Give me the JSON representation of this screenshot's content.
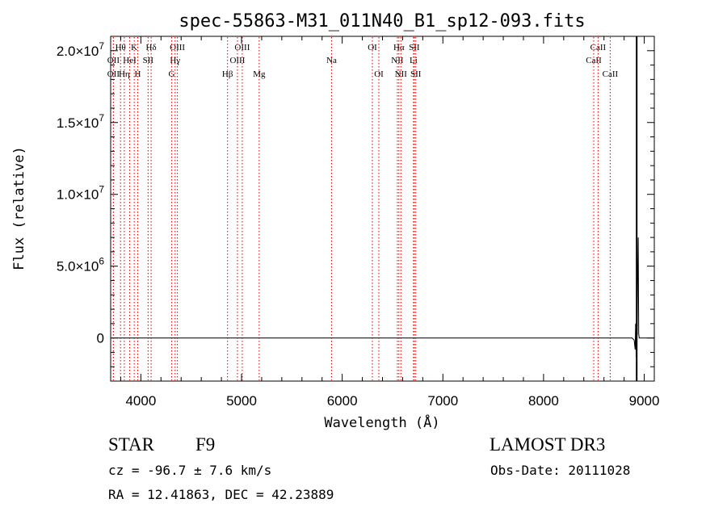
{
  "chart_data": {
    "type": "line",
    "title": "spec-55863-M31_011N40_B1_sp12-093.fits",
    "xlabel": "Wavelength (Å)",
    "ylabel": "Flux (relative)",
    "xlim": [
      3700,
      9100
    ],
    "ylim": [
      -3000000,
      21000000
    ],
    "x_ticks": [
      {
        "value": 4000,
        "label": "4000"
      },
      {
        "value": 5000,
        "label": "5000"
      },
      {
        "value": 6000,
        "label": "6000"
      },
      {
        "value": 7000,
        "label": "7000"
      },
      {
        "value": 8000,
        "label": "8000"
      },
      {
        "value": 9000,
        "label": "9000"
      }
    ],
    "y_ticks": [
      {
        "value": 0,
        "mantissa": "0",
        "exponent": ""
      },
      {
        "value": 5000000,
        "mantissa": "5.0×10",
        "exponent": "6"
      },
      {
        "value": 10000000,
        "mantissa": "1.0×10",
        "exponent": "7"
      },
      {
        "value": 15000000,
        "mantissa": "1.5×10",
        "exponent": "7"
      },
      {
        "value": 20000000,
        "mantissa": "2.0×10",
        "exponent": "7"
      }
    ],
    "series": [
      {
        "name": "flux",
        "x": [
          3700,
          8880,
          8900,
          8910,
          8915,
          8920,
          8925,
          8930,
          8935,
          8940,
          8945,
          8950,
          9100
        ],
        "y": [
          0,
          0,
          -150000,
          -800000,
          1000000,
          -1300000,
          400000,
          200000,
          4500000,
          7000000,
          300000,
          0,
          0
        ]
      }
    ],
    "spike": {
      "x": 8925,
      "y_top": 21000000,
      "y_bottom": -3000000
    },
    "emission_lines": [
      {
        "label": "Hθ",
        "x": 3798,
        "row": 1
      },
      {
        "label": "OII",
        "x": 3727,
        "row": 2
      },
      {
        "label": "OII",
        "x": 3727,
        "row": 3
      },
      {
        "label": "K",
        "x": 3934,
        "row": 1
      },
      {
        "label": "HeI",
        "x": 3889,
        "row": 2
      },
      {
        "label": "Hη",
        "x": 3835,
        "row": 3
      },
      {
        "label": "H",
        "x": 3969,
        "row": 3
      },
      {
        "label": "Hδ",
        "x": 4102,
        "row": 1
      },
      {
        "label": "SII",
        "x": 4072,
        "row": 2
      },
      {
        "label": "OIII",
        "x": 4363,
        "row": 1
      },
      {
        "label": "Hγ",
        "x": 4340,
        "row": 2
      },
      {
        "label": "G",
        "x": 4306,
        "row": 3
      },
      {
        "label": "OIII",
        "x": 5007,
        "row": 1
      },
      {
        "label": "OIII",
        "x": 4959,
        "row": 2
      },
      {
        "label": "Hβ",
        "x": 4861,
        "row": 3
      },
      {
        "label": "Mg",
        "x": 5175,
        "row": 3
      },
      {
        "label": "Na",
        "x": 5894,
        "row": 2
      },
      {
        "label": "OI",
        "x": 6300,
        "row": 1
      },
      {
        "label": "OI",
        "x": 6364,
        "row": 3
      },
      {
        "label": "Hα",
        "x": 6563,
        "row": 1
      },
      {
        "label": "SII",
        "x": 6716,
        "row": 1
      },
      {
        "label": "NII",
        "x": 6548,
        "row": 2
      },
      {
        "label": "Li",
        "x": 6708,
        "row": 2
      },
      {
        "label": "NII",
        "x": 6583,
        "row": 3
      },
      {
        "label": "SII",
        "x": 6731,
        "row": 3
      },
      {
        "label": "CaII",
        "x": 8542,
        "row": 1
      },
      {
        "label": "CaII",
        "x": 8498,
        "row": 2
      },
      {
        "label": "CaII",
        "x": 8662,
        "row": 3
      }
    ],
    "colors": {
      "axis": "#000000",
      "line": "#000000",
      "emission": "#cc0000"
    }
  },
  "info": {
    "class": "STAR",
    "subclass": "F9",
    "survey": "LAMOST DR3",
    "redshift": "cz = -96.7 ± 7.6 km/s",
    "obs_date": "Obs-Date: 20111028",
    "coords": "RA =  12.41863, DEC =  42.23889"
  }
}
